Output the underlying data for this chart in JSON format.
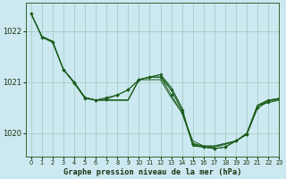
{
  "title": "Graphe pression niveau de la mer (hPa)",
  "background_color": "#cce8f0",
  "grid_color": "#99ccbb",
  "line_color": "#1a5c1a",
  "xlim": [
    -0.5,
    23
  ],
  "ylim": [
    1019.55,
    1022.55
  ],
  "yticks": [
    1020,
    1021,
    1022
  ],
  "xticks": [
    0,
    1,
    2,
    3,
    4,
    5,
    6,
    7,
    8,
    9,
    10,
    11,
    12,
    13,
    14,
    15,
    16,
    17,
    18,
    19,
    20,
    21,
    22,
    23
  ],
  "series": [
    {
      "x": [
        0,
        1,
        2,
        3,
        4,
        5,
        6,
        7,
        8,
        9,
        10,
        11,
        12,
        13,
        14,
        15,
        16,
        17,
        18,
        19,
        20,
        21,
        22,
        23
      ],
      "y": [
        1022.35,
        1021.9,
        1021.8,
        1021.25,
        1021.0,
        1020.7,
        1020.65,
        1020.65,
        1020.65,
        1020.65,
        1021.05,
        1021.05,
        1021.05,
        1020.7,
        1020.4,
        1019.85,
        1019.75,
        1019.75,
        1019.8,
        1019.85,
        1020.0,
        1020.55,
        1020.6,
        1020.65
      ],
      "has_markers": false
    },
    {
      "x": [
        0,
        1,
        2,
        3,
        4,
        5,
        6,
        7,
        8,
        9,
        10,
        11,
        12,
        13,
        14,
        15,
        16,
        17,
        18,
        19,
        20,
        21,
        22,
        23
      ],
      "y": [
        1022.35,
        1021.9,
        1021.8,
        1021.25,
        1021.0,
        1020.7,
        1020.65,
        1020.65,
        1020.65,
        1020.65,
        1021.05,
        1021.1,
        1021.1,
        1020.85,
        1020.45,
        1019.8,
        1019.75,
        1019.75,
        1019.8,
        1019.85,
        1020.0,
        1020.55,
        1020.65,
        1020.65
      ],
      "has_markers": false
    },
    {
      "x": [
        0,
        1,
        2,
        3,
        4,
        5,
        6,
        7,
        8,
        9,
        10,
        11,
        12,
        13,
        14,
        15,
        16,
        17,
        18,
        19,
        20,
        21,
        22,
        23
      ],
      "y": [
        1022.35,
        1021.9,
        1021.8,
        1021.25,
        1021.0,
        1020.7,
        1020.65,
        1020.65,
        1020.65,
        1020.65,
        1021.05,
        1021.1,
        1021.15,
        1020.9,
        1020.5,
        1019.75,
        1019.73,
        1019.73,
        1019.78,
        1019.85,
        1019.98,
        1020.55,
        1020.65,
        1020.68
      ],
      "has_markers": false
    },
    {
      "x": [
        3,
        4,
        5,
        6,
        7,
        8,
        9,
        10,
        11,
        12,
        13,
        14,
        15,
        16,
        17,
        18,
        19,
        20,
        21,
        22,
        23
      ],
      "y": [
        1021.25,
        1021.0,
        1020.7,
        1020.65,
        1020.7,
        1020.75,
        1020.85,
        1021.05,
        1021.1,
        1021.15,
        1020.85,
        1020.45,
        1019.78,
        1019.73,
        1019.7,
        1019.73,
        1019.85,
        1019.98,
        1020.5,
        1020.65,
        1020.68
      ],
      "has_markers": true
    }
  ],
  "main_series": {
    "x": [
      0,
      1,
      2,
      3,
      4,
      5,
      6,
      7,
      8,
      9,
      10,
      11,
      12,
      13,
      14,
      15,
      16,
      17,
      18,
      19,
      20,
      21,
      22,
      23
    ],
    "y": [
      1022.35,
      1021.88,
      1021.78,
      1021.25,
      1020.98,
      1020.68,
      1020.65,
      1020.67,
      1020.75,
      1020.85,
      1021.05,
      1021.1,
      1021.1,
      1020.75,
      1020.4,
      1019.78,
      1019.73,
      1019.7,
      1019.73,
      1019.85,
      1019.98,
      1020.5,
      1020.62,
      1020.68
    ]
  }
}
